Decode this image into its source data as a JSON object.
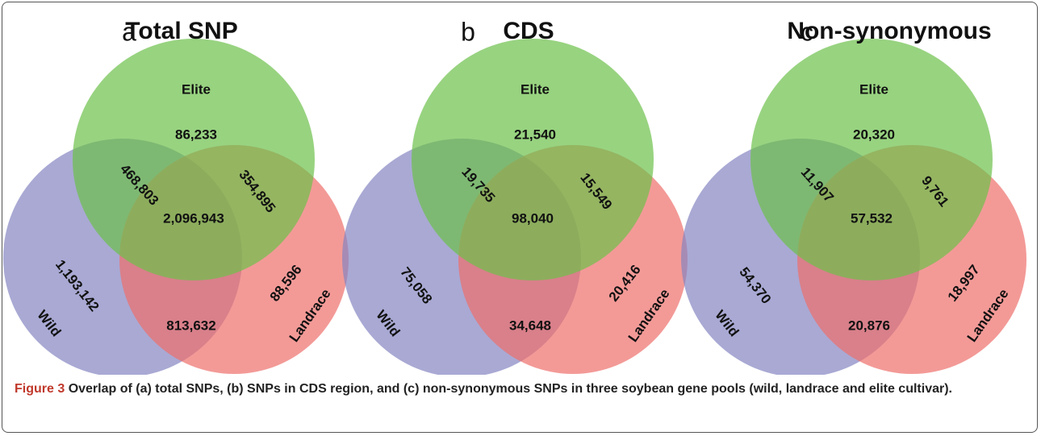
{
  "figure": {
    "panels": [
      {
        "letter": "a",
        "title": "Total SNP",
        "sets": [
          "Elite",
          "Wild",
          "Landrace"
        ],
        "counts": {
          "elite_only": "86,233",
          "elite_wild": "468,803",
          "elite_landrace": "354,895",
          "all": "2,096,943",
          "wild_only": "1,193,142",
          "wild_landrace": "813,632",
          "landrace_only": "88,596"
        }
      },
      {
        "letter": "b",
        "title": "CDS",
        "sets": [
          "Elite",
          "Wild",
          "Landrace"
        ],
        "counts": {
          "elite_only": "21,540",
          "elite_wild": "19,735",
          "elite_landrace": "15,549",
          "all": "98,040",
          "wild_only": "75,058",
          "wild_landrace": "34,648",
          "landrace_only": "20,416"
        }
      },
      {
        "letter": "c",
        "title": "Non-synonymous",
        "sets": [
          "Elite",
          "Wild",
          "Landrace"
        ],
        "counts": {
          "elite_only": "20,320",
          "elite_wild": "11,907",
          "elite_landrace": "9,761",
          "all": "57,532",
          "wild_only": "54,370",
          "wild_landrace": "20,876",
          "landrace_only": "18,997"
        }
      }
    ],
    "caption": {
      "label": "Figure 3",
      "text": "Overlap of (a) total SNPs, (b) SNPs in CDS region, and (c) non-synonymous SNPs in three soybean gene pools (wild, landrace and elite cultivar)."
    }
  }
}
